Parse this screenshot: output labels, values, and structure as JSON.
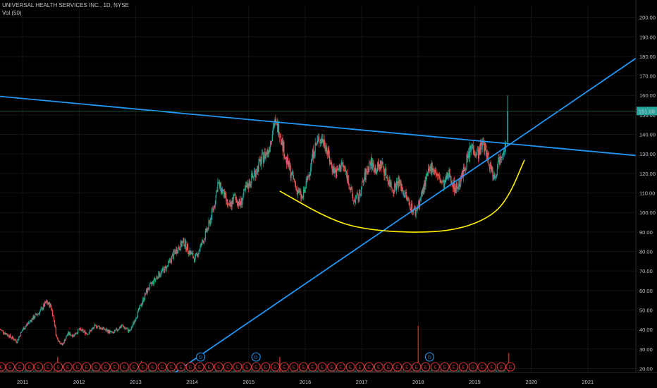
{
  "header": {
    "symbol_line": "UNIVERSAL HEALTH SERVICES INC., 1D, NYSE",
    "indicator_line": "Vol (50)"
  },
  "chart_data": {
    "type": "candlestick",
    "x_axis": {
      "tick_labels": [
        "2011",
        "2012",
        "2013",
        "2014",
        "2015",
        "2016",
        "2017",
        "2018",
        "2019",
        "2020",
        "2021"
      ],
      "range": [
        2010.6,
        2021.85
      ]
    },
    "y_axis": {
      "position": "right",
      "tick_labels": [
        "20.00",
        "30.00",
        "40.00",
        "50.00",
        "60.00",
        "70.00",
        "80.00",
        "90.00",
        "100.00",
        "110.00",
        "120.00",
        "130.00",
        "140.00",
        "150.00",
        "160.00",
        "170.00",
        "180.00",
        "190.00",
        "200.00"
      ],
      "range": [
        18,
        206
      ]
    },
    "last_price": {
      "label": "151.99",
      "value": 151.99,
      "color": "#26a69a"
    },
    "price_path": [
      [
        2010.6,
        40
      ],
      [
        2010.75,
        37
      ],
      [
        2010.9,
        34
      ],
      [
        2011.0,
        40
      ],
      [
        2011.15,
        45
      ],
      [
        2011.3,
        49
      ],
      [
        2011.42,
        54
      ],
      [
        2011.5,
        52
      ],
      [
        2011.55,
        46
      ],
      [
        2011.6,
        36
      ],
      [
        2011.7,
        32
      ],
      [
        2011.8,
        38
      ],
      [
        2011.9,
        37
      ],
      [
        2012.0,
        40
      ],
      [
        2012.15,
        38
      ],
      [
        2012.3,
        42
      ],
      [
        2012.45,
        40
      ],
      [
        2012.6,
        38
      ],
      [
        2012.75,
        42
      ],
      [
        2012.9,
        39
      ],
      [
        2013.0,
        46
      ],
      [
        2013.2,
        60
      ],
      [
        2013.4,
        68
      ],
      [
        2013.55,
        72
      ],
      [
        2013.7,
        80
      ],
      [
        2013.85,
        85
      ],
      [
        2013.95,
        80
      ],
      [
        2014.05,
        76
      ],
      [
        2014.2,
        86
      ],
      [
        2014.3,
        94
      ],
      [
        2014.4,
        105
      ],
      [
        2014.45,
        115
      ],
      [
        2014.55,
        110
      ],
      [
        2014.65,
        102
      ],
      [
        2014.75,
        108
      ],
      [
        2014.85,
        104
      ],
      [
        2014.95,
        112
      ],
      [
        2015.1,
        120
      ],
      [
        2015.25,
        128
      ],
      [
        2015.35,
        132
      ],
      [
        2015.45,
        146
      ],
      [
        2015.55,
        142
      ],
      [
        2015.65,
        128
      ],
      [
        2015.75,
        120
      ],
      [
        2015.85,
        112
      ],
      [
        2015.95,
        107
      ],
      [
        2016.05,
        118
      ],
      [
        2016.15,
        132
      ],
      [
        2016.25,
        138
      ],
      [
        2016.35,
        136
      ],
      [
        2016.45,
        125
      ],
      [
        2016.55,
        120
      ],
      [
        2016.65,
        125
      ],
      [
        2016.75,
        118
      ],
      [
        2016.85,
        106
      ],
      [
        2016.95,
        108
      ],
      [
        2017.05,
        118
      ],
      [
        2017.15,
        126
      ],
      [
        2017.25,
        122
      ],
      [
        2017.35,
        125
      ],
      [
        2017.45,
        118
      ],
      [
        2017.55,
        112
      ],
      [
        2017.65,
        116
      ],
      [
        2017.75,
        110
      ],
      [
        2017.85,
        104
      ],
      [
        2017.95,
        100
      ],
      [
        2018.05,
        108
      ],
      [
        2018.15,
        118
      ],
      [
        2018.25,
        124
      ],
      [
        2018.35,
        118
      ],
      [
        2018.45,
        114
      ],
      [
        2018.55,
        120
      ],
      [
        2018.65,
        112
      ],
      [
        2018.75,
        116
      ],
      [
        2018.85,
        126
      ],
      [
        2018.95,
        134
      ],
      [
        2019.05,
        130
      ],
      [
        2019.15,
        136
      ],
      [
        2019.25,
        126
      ],
      [
        2019.35,
        118
      ],
      [
        2019.45,
        130
      ],
      [
        2019.55,
        135
      ],
      [
        2019.58,
        152
      ]
    ],
    "volume_spikes": [
      [
        2018.0,
        12
      ],
      [
        2019.6,
        5
      ],
      [
        2011.62,
        4
      ],
      [
        2013.1,
        3
      ],
      [
        2015.55,
        4
      ]
    ],
    "trendlines": [
      {
        "name": "descending resistance",
        "color": "#2196f3",
        "points": [
          [
            2010.6,
            159.5
          ],
          [
            2021.85,
            129.2
          ]
        ]
      },
      {
        "name": "rising support",
        "color": "#2196f3",
        "points": [
          [
            2013.7,
            18
          ],
          [
            2021.85,
            179
          ]
        ]
      }
    ],
    "curve": {
      "color": "#ffee00",
      "points": [
        [
          2015.55,
          111
        ],
        [
          2016.4,
          97
        ],
        [
          2017.0,
          91.5
        ],
        [
          2017.9,
          89.5
        ],
        [
          2018.7,
          91
        ],
        [
          2019.3,
          98
        ],
        [
          2019.6,
          108
        ],
        [
          2019.88,
          127
        ]
      ]
    },
    "events": [
      {
        "type": "E",
        "dates": [
          2010.62,
          2010.78,
          2010.95,
          2011.12,
          2011.28,
          2011.45,
          2011.63,
          2011.8,
          2011.97,
          2012.13,
          2012.3,
          2012.47,
          2012.63,
          2012.8,
          2012.97,
          2013.13,
          2013.3,
          2013.47,
          2013.63,
          2013.8,
          2013.97,
          2014.13,
          2014.3,
          2014.47,
          2014.63,
          2014.8,
          2014.97,
          2015.13,
          2015.3,
          2015.47,
          2015.63,
          2015.8,
          2015.97,
          2016.13,
          2016.3,
          2016.47,
          2016.63,
          2016.8,
          2016.97,
          2017.13,
          2017.3,
          2017.47,
          2017.63,
          2017.8,
          2017.97,
          2018.13,
          2018.3,
          2018.47,
          2018.63,
          2018.8,
          2018.97,
          2019.13,
          2019.3,
          2019.47,
          2019.63
        ]
      },
      {
        "type": "D",
        "dates": [
          2014.15,
          2015.13,
          2018.2
        ]
      }
    ]
  },
  "colors": {
    "background": "#000000",
    "up": "#26a69a",
    "down": "#ef5350",
    "axis_text": "#bfc3cc",
    "grid": "#141414"
  }
}
